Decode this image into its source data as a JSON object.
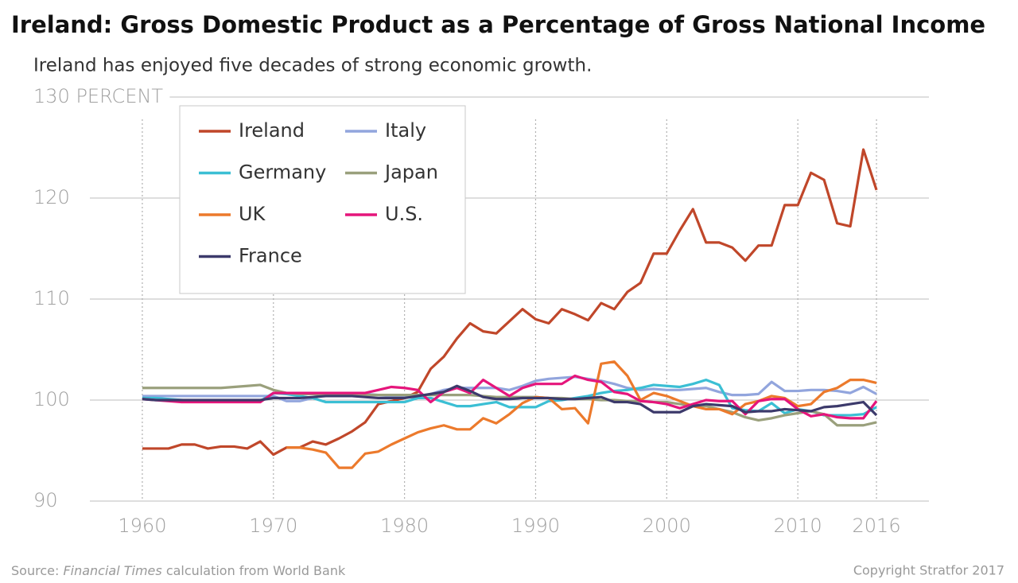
{
  "chart_data": {
    "type": "line",
    "title": "Ireland: Gross Domestic Product as a Percentage of Gross National Income",
    "subtitle": "Ireland has enjoyed five decades of strong economic growth.",
    "source": {
      "prefix": "Source:",
      "italic": "Financial Times",
      "suffix": "calculation from World Bank"
    },
    "copyright": "Copyright Stratfor 2017",
    "x": [
      1960,
      1961,
      1962,
      1963,
      1964,
      1965,
      1966,
      1967,
      1968,
      1969,
      1970,
      1971,
      1972,
      1973,
      1974,
      1975,
      1976,
      1977,
      1978,
      1979,
      1980,
      1981,
      1982,
      1983,
      1984,
      1985,
      1986,
      1987,
      1988,
      1989,
      1990,
      1991,
      1992,
      1993,
      1994,
      1995,
      1996,
      1997,
      1998,
      1999,
      2000,
      2001,
      2002,
      2003,
      2004,
      2005,
      2006,
      2007,
      2008,
      2009,
      2010,
      2011,
      2012,
      2013,
      2014,
      2015,
      2016
    ],
    "xlim": [
      1956,
      2020
    ],
    "xticks": [
      1960,
      1970,
      1980,
      1990,
      2000,
      2010,
      2016
    ],
    "ylim": [
      90,
      130
    ],
    "yticks": [
      90,
      100,
      110,
      120,
      {
        "value": 130,
        "label": "130 PERCENT"
      }
    ],
    "grid": true,
    "legend": "upper left",
    "series": [
      {
        "name": "Ireland",
        "color": "#c0472a",
        "values": [
          95.2,
          95.2,
          95.2,
          95.6,
          95.6,
          95.2,
          95.4,
          95.4,
          95.2,
          95.9,
          94.6,
          95.3,
          95.3,
          95.9,
          95.6,
          96.2,
          96.9,
          97.8,
          99.6,
          99.9,
          100.2,
          100.8,
          103.1,
          104.3,
          106.1,
          107.6,
          106.8,
          106.6,
          107.8,
          109.0,
          108.0,
          107.6,
          109.0,
          108.5,
          107.9,
          109.6,
          109.0,
          110.7,
          111.6,
          114.5,
          114.5,
          116.8,
          118.9,
          115.6,
          115.6,
          115.1,
          113.8,
          115.3,
          115.3,
          119.3,
          119.3,
          122.5,
          121.8,
          117.5,
          117.2,
          124.8,
          120.8
        ]
      },
      {
        "name": "Italy",
        "color": "#92a5dd",
        "values": [
          100.4,
          100.4,
          100.4,
          100.4,
          100.4,
          100.4,
          100.4,
          100.4,
          100.4,
          100.4,
          100.4,
          99.9,
          99.9,
          100.2,
          100.6,
          100.6,
          100.6,
          100.6,
          100.5,
          100.4,
          100.3,
          100.3,
          100.6,
          101.0,
          101.2,
          101.2,
          101.2,
          101.2,
          101.0,
          101.4,
          101.9,
          102.1,
          102.2,
          102.3,
          102.1,
          101.9,
          101.6,
          101.2,
          101.0,
          101.1,
          101.0,
          101.0,
          101.1,
          101.2,
          100.8,
          100.5,
          100.5,
          100.6,
          101.8,
          100.9,
          100.9,
          101.0,
          101.0,
          100.9,
          100.7,
          101.3,
          100.6
        ]
      },
      {
        "name": "Germany",
        "color": "#3bbfd4",
        "values": [
          100.2,
          100.2,
          100.1,
          100.0,
          99.9,
          99.9,
          99.9,
          99.9,
          99.9,
          99.9,
          100.7,
          100.6,
          100.4,
          100.2,
          99.8,
          99.8,
          99.8,
          99.8,
          99.8,
          99.8,
          99.8,
          100.2,
          100.2,
          99.8,
          99.4,
          99.4,
          99.6,
          99.8,
          99.3,
          99.3,
          99.3,
          99.9,
          100.0,
          100.2,
          100.4,
          100.7,
          100.9,
          101.0,
          101.2,
          101.5,
          101.4,
          101.3,
          101.6,
          102.0,
          101.5,
          99.2,
          99.0,
          98.9,
          99.7,
          98.7,
          99.1,
          98.9,
          98.5,
          98.5,
          98.5,
          98.6,
          99.3
        ]
      },
      {
        "name": "Japan",
        "color": "#9aa07c",
        "values": [
          101.2,
          101.2,
          101.2,
          101.2,
          101.2,
          101.2,
          101.2,
          101.3,
          101.4,
          101.5,
          101.0,
          100.7,
          100.6,
          100.6,
          100.5,
          100.5,
          100.5,
          100.5,
          100.5,
          100.5,
          100.5,
          100.5,
          100.5,
          100.5,
          100.5,
          100.5,
          100.4,
          100.3,
          100.3,
          100.3,
          100.3,
          100.2,
          100.2,
          100.1,
          100.1,
          100.0,
          100.0,
          99.9,
          99.9,
          99.8,
          99.8,
          99.6,
          99.5,
          99.4,
          99.1,
          98.8,
          98.3,
          98.0,
          98.2,
          98.5,
          98.7,
          98.9,
          98.6,
          97.5,
          97.5,
          97.5,
          97.8
        ]
      },
      {
        "name": "UK",
        "color": "#ec7a2c",
        "values": [
          null,
          null,
          null,
          null,
          null,
          null,
          null,
          null,
          null,
          null,
          null,
          95.3,
          95.3,
          95.1,
          94.8,
          93.3,
          93.3,
          94.7,
          94.9,
          95.6,
          96.2,
          96.8,
          97.2,
          97.5,
          97.1,
          97.1,
          98.2,
          97.7,
          98.6,
          99.7,
          100.3,
          100.2,
          99.1,
          99.2,
          97.7,
          103.6,
          103.8,
          102.4,
          100.0,
          100.7,
          100.4,
          99.9,
          99.4,
          99.1,
          99.1,
          98.6,
          99.6,
          99.9,
          100.4,
          100.2,
          99.4,
          99.6,
          100.8,
          101.2,
          102.0,
          102.0,
          101.7
        ]
      },
      {
        "name": "U.S.",
        "color": "#e5157b",
        "values": [
          100.1,
          100.0,
          99.9,
          99.8,
          99.8,
          99.8,
          99.8,
          99.8,
          99.8,
          99.8,
          100.7,
          100.7,
          100.7,
          100.7,
          100.7,
          100.7,
          100.7,
          100.7,
          101.0,
          101.3,
          101.2,
          101.0,
          99.8,
          100.8,
          101.2,
          100.7,
          102.0,
          101.2,
          100.4,
          101.2,
          101.6,
          101.6,
          101.6,
          102.4,
          102.0,
          101.8,
          100.8,
          100.6,
          99.9,
          99.8,
          99.6,
          99.2,
          99.6,
          100.0,
          99.9,
          99.9,
          98.6,
          99.9,
          100.1,
          100.1,
          99.1,
          98.4,
          98.6,
          98.3,
          98.2,
          98.2,
          99.9
        ]
      },
      {
        "name": "France",
        "color": "#3c3a6b",
        "values": [
          100.1,
          100.0,
          100.0,
          100.0,
          100.0,
          100.0,
          100.0,
          100.0,
          100.0,
          100.0,
          100.2,
          100.2,
          100.2,
          100.3,
          100.4,
          100.4,
          100.4,
          100.3,
          100.2,
          100.2,
          100.2,
          100.4,
          100.6,
          100.8,
          101.4,
          100.9,
          100.3,
          100.1,
          100.1,
          100.2,
          100.2,
          100.2,
          100.1,
          100.1,
          100.2,
          100.3,
          99.8,
          99.8,
          99.6,
          98.8,
          98.8,
          98.8,
          99.4,
          99.6,
          99.5,
          99.4,
          98.8,
          98.9,
          98.9,
          99.1,
          99.0,
          98.9,
          99.3,
          99.4,
          99.6,
          99.8,
          98.5
        ]
      }
    ]
  }
}
